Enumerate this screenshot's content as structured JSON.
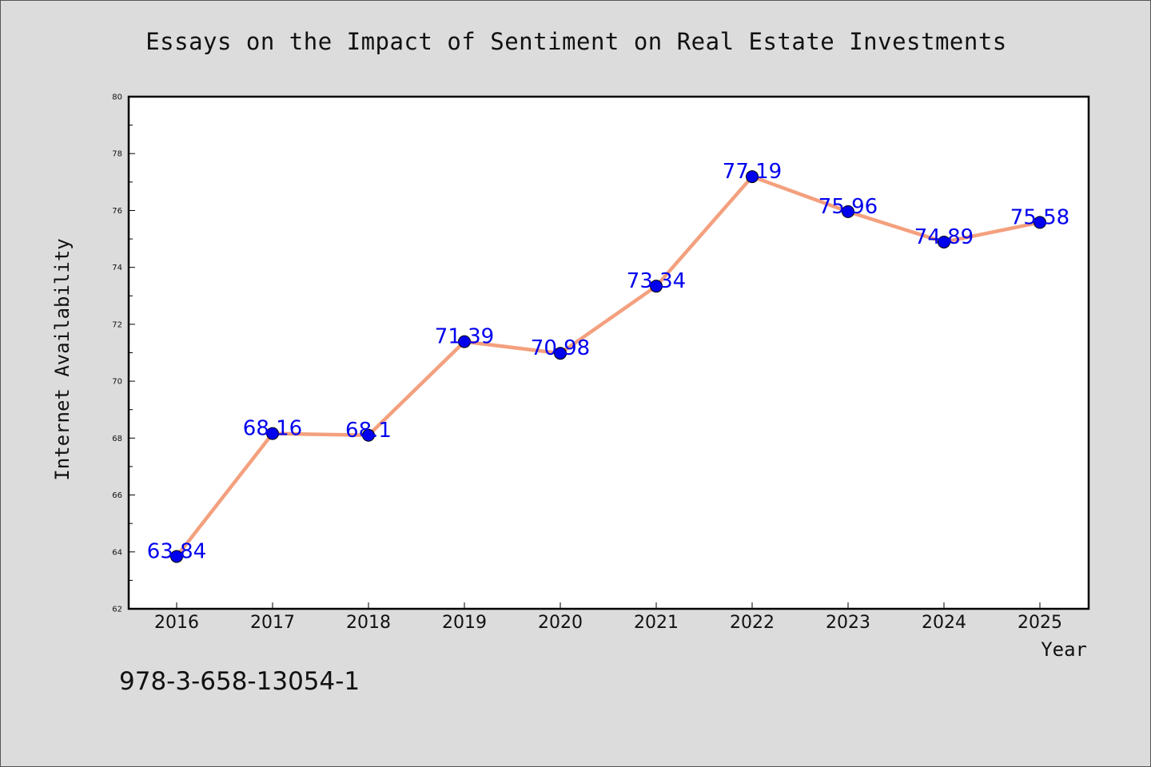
{
  "chart_data": {
    "type": "line",
    "title": "Essays on the Impact of Sentiment on Real Estate Investments",
    "xlabel": "Year",
    "ylabel": "Internet Availability",
    "categories": [
      "2016",
      "2017",
      "2018",
      "2019",
      "2020",
      "2021",
      "2022",
      "2023",
      "2024",
      "2025"
    ],
    "series": [
      {
        "values": [
          63.84,
          68.16,
          68.1,
          71.39,
          70.98,
          73.34,
          77.19,
          75.96,
          74.89,
          75.58
        ]
      }
    ],
    "data_labels": [
      "63.84",
      "68.16",
      "68.1",
      "71.39",
      "70.98",
      "73.34",
      "77.19",
      "75.96",
      "74.89",
      "75.58"
    ],
    "ylim": [
      62,
      80
    ],
    "yticks": [
      "62",
      "64",
      "66",
      "68",
      "70",
      "72",
      "74",
      "76",
      "78",
      "80"
    ],
    "grid": false,
    "line_color": "#f4a07e",
    "marker_color": "#0000ee",
    "label_color": "#0000ee"
  },
  "footer": {
    "isbn": "978-3-658-13054-1"
  }
}
